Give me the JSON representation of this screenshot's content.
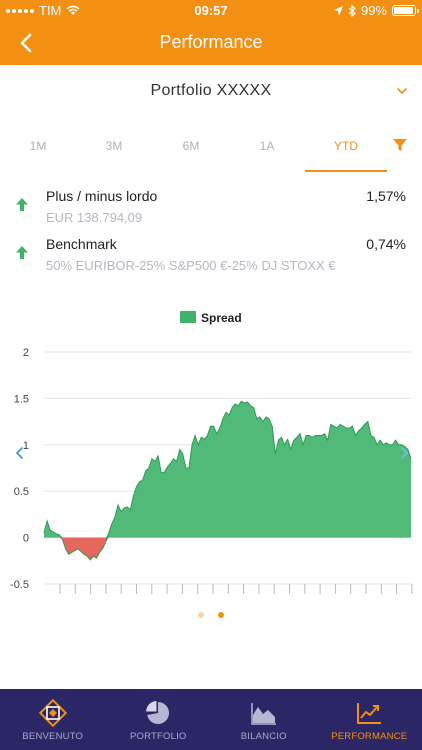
{
  "status_bar": {
    "carrier": "TIM",
    "time": "09:57",
    "battery": "99%"
  },
  "nav": {
    "title": "Performance"
  },
  "portfolio": {
    "name": "Portfolio XXXXX"
  },
  "periods": [
    {
      "label": "1M",
      "active": false
    },
    {
      "label": "3M",
      "active": false
    },
    {
      "label": "6M",
      "active": false
    },
    {
      "label": "1A",
      "active": false
    },
    {
      "label": "YTD",
      "active": true
    }
  ],
  "metrics": [
    {
      "label": "Plus / minus lordo",
      "sub": "EUR 138.794,09",
      "value": "1,57%"
    },
    {
      "label": "Benchmark",
      "sub": "50% EURIBOR-25% S&P500 €-25% DJ STOXX €",
      "value": "0,74%"
    }
  ],
  "colors": {
    "accent": "#f39013",
    "positive": "#3fb36a",
    "negative": "#e3584b",
    "tab_bar": "#2b2767"
  },
  "chart_data": {
    "type": "area",
    "title": "",
    "xlabel": "",
    "ylabel": "",
    "ylim": [
      -0.5,
      2
    ],
    "yticks": [
      2,
      1.5,
      1,
      0.5,
      0,
      -0.5
    ],
    "grid": true,
    "legend": {
      "position": "top",
      "entries": [
        "Spread"
      ]
    },
    "series": [
      {
        "name": "Spread",
        "x": [
          0,
          1,
          2,
          3,
          4,
          5,
          6,
          7,
          8,
          9,
          10,
          11,
          12,
          13,
          14,
          15,
          16,
          17,
          18,
          19,
          20,
          21,
          22,
          23,
          24,
          25,
          26,
          27,
          28,
          29,
          30,
          31,
          32,
          33,
          34,
          35,
          36,
          37,
          38,
          39,
          40,
          41,
          42,
          43,
          44,
          45,
          46,
          47,
          48,
          49,
          50,
          51,
          52,
          53,
          54,
          55,
          56,
          57,
          58,
          59,
          60,
          61,
          62,
          63,
          64,
          65,
          66,
          67,
          68,
          69,
          70,
          71,
          72,
          73,
          74,
          75,
          76,
          77,
          78,
          79,
          80,
          81,
          82,
          83,
          84,
          85,
          86,
          87,
          88,
          89,
          90,
          91,
          92,
          93,
          94,
          95,
          96,
          97,
          98,
          99,
          100,
          101,
          102,
          103,
          104,
          105,
          106,
          107,
          108,
          109,
          110,
          111,
          112,
          113,
          114,
          115,
          116,
          117,
          118,
          119
        ],
        "values": [
          0.05,
          0.18,
          0.08,
          0.06,
          0.04,
          0.03,
          -0.02,
          -0.12,
          -0.18,
          -0.16,
          -0.14,
          -0.12,
          -0.15,
          -0.18,
          -0.2,
          -0.24,
          -0.2,
          -0.22,
          -0.16,
          -0.12,
          -0.05,
          0.05,
          0.15,
          0.22,
          0.35,
          0.28,
          0.32,
          0.33,
          0.3,
          0.45,
          0.55,
          0.6,
          0.62,
          0.72,
          0.75,
          0.85,
          0.82,
          0.88,
          0.7,
          0.7,
          0.76,
          0.8,
          0.85,
          0.82,
          0.95,
          0.9,
          0.75,
          0.75,
          1.0,
          1.1,
          1.0,
          1.08,
          1.06,
          1.1,
          1.2,
          1.2,
          1.12,
          1.18,
          1.28,
          1.35,
          1.32,
          1.4,
          1.44,
          1.42,
          1.47,
          1.45,
          1.46,
          1.42,
          1.4,
          1.28,
          1.3,
          1.25,
          1.3,
          1.28,
          1.2,
          0.9,
          1.05,
          1.08,
          1.0,
          1.06,
          0.95,
          1.05,
          1.08,
          1.12,
          1.0,
          1.1,
          1.1,
          1.08,
          1.1,
          1.1,
          1.1,
          1.12,
          1.05,
          1.22,
          1.2,
          1.18,
          1.22,
          1.2,
          1.18,
          1.18,
          1.2,
          1.1,
          1.15,
          1.18,
          1.22,
          1.25,
          1.1,
          1.08,
          1.0,
          1.05,
          1.0,
          1.02,
          1.0,
          1.0,
          1.05,
          1.0,
          1.0,
          0.98,
          0.95,
          0.85
        ]
      }
    ]
  },
  "pager": {
    "count": 2,
    "active": 1
  },
  "tab_bar": [
    {
      "label": "BENVENUTO",
      "icon": "logo-icon",
      "active": false
    },
    {
      "label": "PORTFOLIO",
      "icon": "pie-chart-icon",
      "active": false
    },
    {
      "label": "BILANCIO",
      "icon": "area-chart-icon",
      "active": false
    },
    {
      "label": "PERFORMANCE",
      "icon": "trend-chart-icon",
      "active": true
    }
  ]
}
